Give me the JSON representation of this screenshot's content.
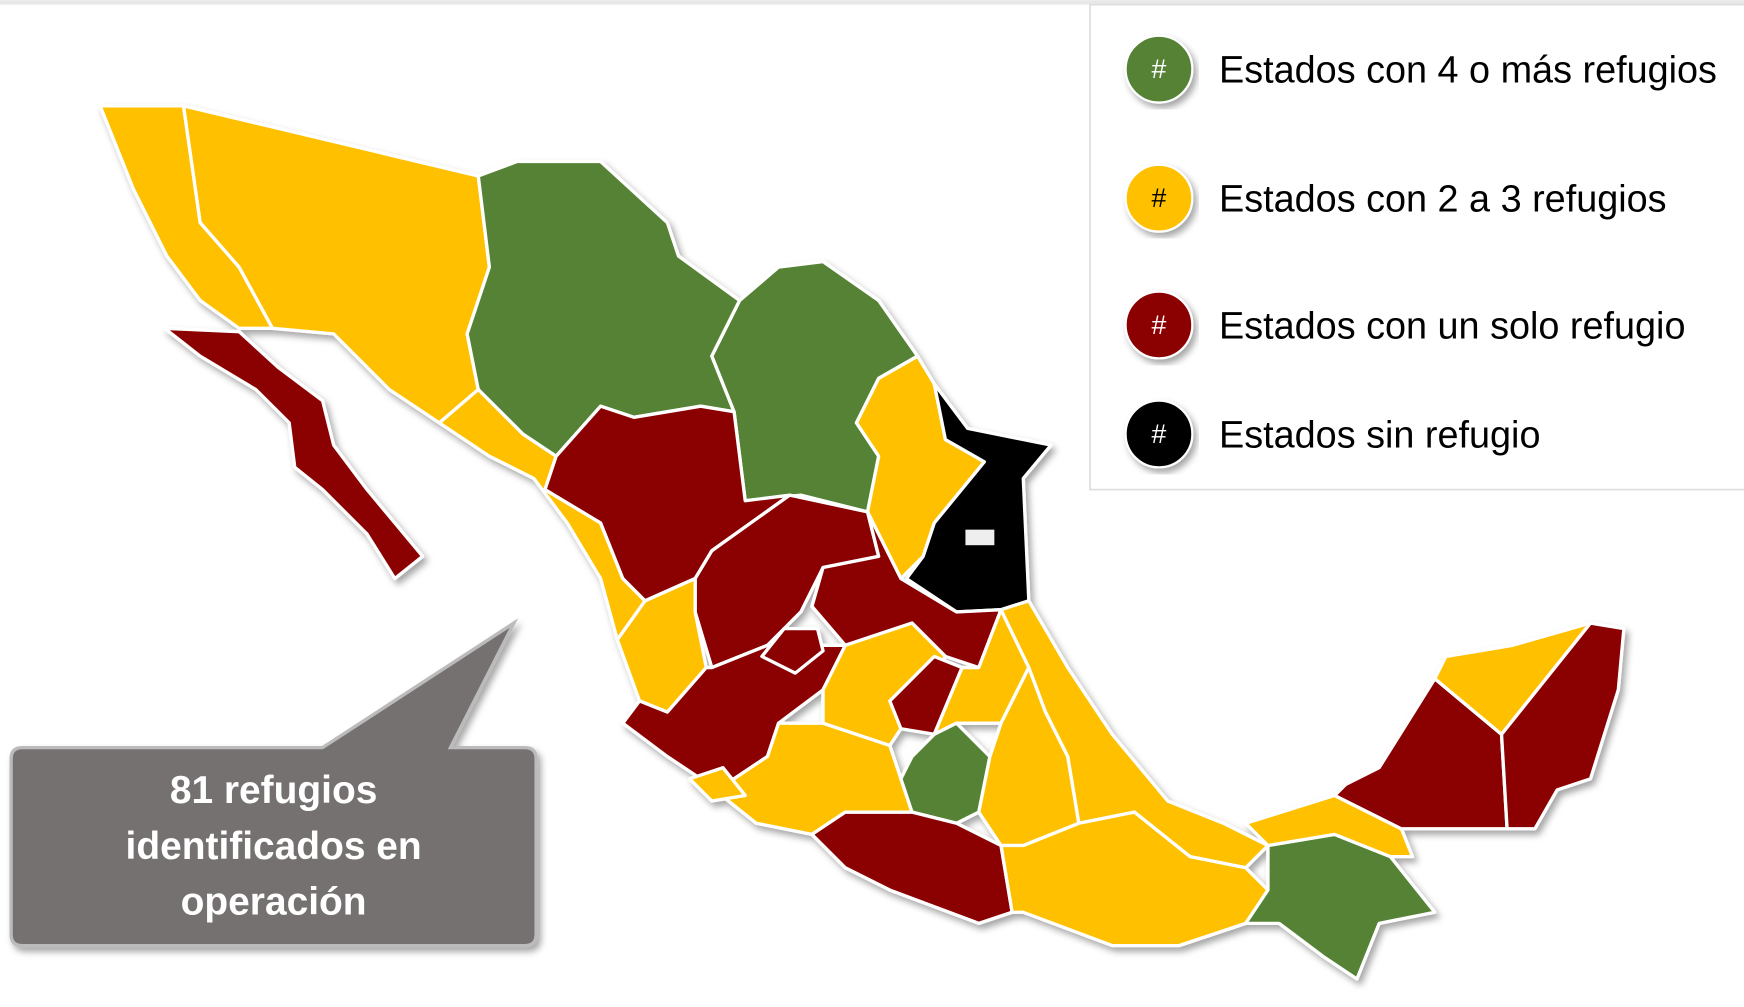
{
  "legend": {
    "items": [
      {
        "symbol": "#",
        "label": "Estados con 4 o más refugios",
        "color": "#548235"
      },
      {
        "symbol": "#",
        "label": "Estados con 2 a 3 refugios",
        "color": "#FFC000"
      },
      {
        "symbol": "#",
        "label": "Estados con un solo refugio",
        "color": "#8B0304"
      },
      {
        "symbol": "#",
        "label": "Estados sin refugio",
        "color": "#000000"
      }
    ]
  },
  "callout": {
    "lines": [
      "81 refugios",
      "identificados en",
      "operación"
    ]
  }
}
